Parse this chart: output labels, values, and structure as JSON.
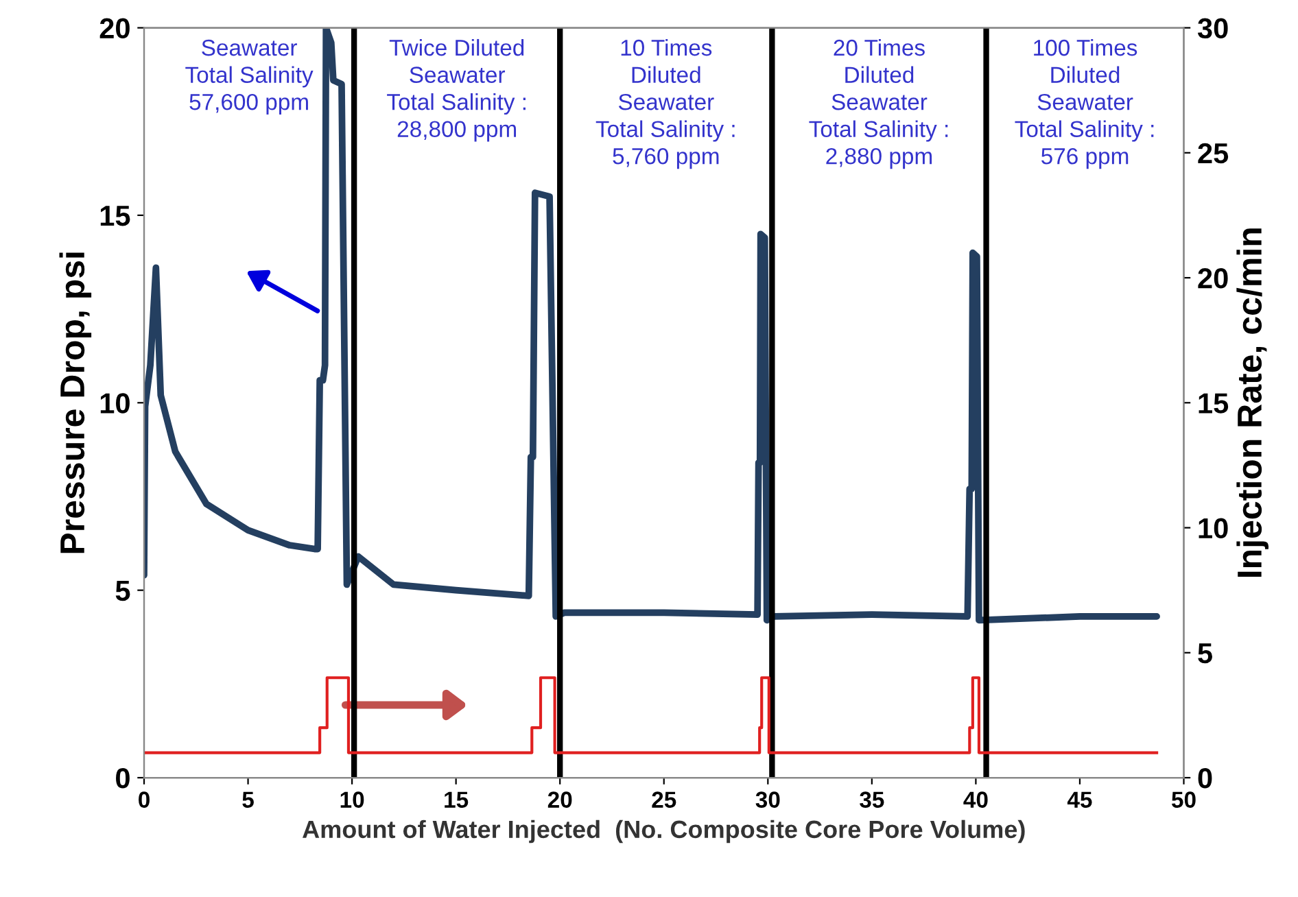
{
  "chart_data": {
    "type": "line",
    "xlabel": "Amount of Water Injected  (No. Composite Core Pore Volume)",
    "ylabel": "Pressure Drop, psi",
    "y2label": "Injection Rate, cc/min",
    "xlim": [
      0,
      50
    ],
    "xticks": [
      0,
      5,
      10,
      15,
      20,
      25,
      30,
      35,
      40,
      45,
      50
    ],
    "ylim": [
      0,
      20
    ],
    "yticks": [
      0,
      5,
      10,
      15,
      20
    ],
    "y2lim": [
      0,
      30
    ],
    "y2ticks": [
      0,
      5,
      10,
      15,
      20,
      25,
      30
    ],
    "grid": false,
    "legend": false,
    "series": [
      {
        "axis": "y",
        "color": "#243f60",
        "x": [
          0,
          0.05,
          0.3,
          0.57,
          0.8,
          1.5,
          3,
          5,
          7,
          8.2,
          8.35,
          8.45,
          8.6,
          8.7,
          8.75,
          9.0,
          9.1,
          9.5,
          9.75,
          10.3,
          12,
          15,
          18.5,
          18.6,
          18.7,
          18.8,
          19.5,
          19.8,
          20.2,
          25,
          29.5,
          29.55,
          29.62,
          29.65,
          29.85,
          29.95,
          30.3,
          35,
          39.6,
          39.7,
          39.8,
          39.85,
          40.05,
          40.15,
          45,
          48.7
        ],
        "values": [
          5.4,
          9.9,
          11.0,
          13.6,
          10.2,
          8.7,
          7.3,
          6.6,
          6.2,
          6.1,
          6.1,
          10.6,
          10.6,
          11.0,
          20,
          19.6,
          18.6,
          18.5,
          5.15,
          5.9,
          5.15,
          5.0,
          4.85,
          8.55,
          8.55,
          15.6,
          15.5,
          4.3,
          4.4,
          4.4,
          4.35,
          8.4,
          8.4,
          14.5,
          14.4,
          4.2,
          4.3,
          4.35,
          4.3,
          7.7,
          7.7,
          14.0,
          13.9,
          4.2,
          4.3,
          4.3
        ]
      },
      {
        "type": "step",
        "axis": "y2",
        "color": "#e02020",
        "x": [
          0,
          8.45,
          8.8,
          9.83,
          18.65,
          19.07,
          19.75,
          29.6,
          29.7,
          30.05,
          39.7,
          39.85,
          40.15,
          48.7
        ],
        "values": [
          1,
          2,
          4,
          1,
          2,
          4,
          1,
          2,
          4,
          1,
          2,
          4,
          1,
          1
        ]
      }
    ],
    "ref_lines": [
      {
        "axis": "x",
        "value": 10.1,
        "color": "#000000"
      },
      {
        "axis": "x",
        "value": 20,
        "color": "#000000"
      },
      {
        "axis": "x",
        "value": 30.2,
        "color": "#000000"
      },
      {
        "axis": "x",
        "value": 40.5,
        "color": "#000000"
      }
    ],
    "annotations": [
      "Seawater\nTotal Salinity\n57,600 ppm",
      "Twice Diluted\nSeawater\nTotal Salinity :\n28,800 ppm",
      "10 Times\nDiluted\nSeawater\nTotal Salinity :\n5,760 ppm",
      "20 Times\nDiluted\nSeawater\nTotal Salinity :\n2,880 ppm",
      "100 Times\nDiluted\nSeawater\nTotal Salinity :\n576 ppm"
    ]
  }
}
